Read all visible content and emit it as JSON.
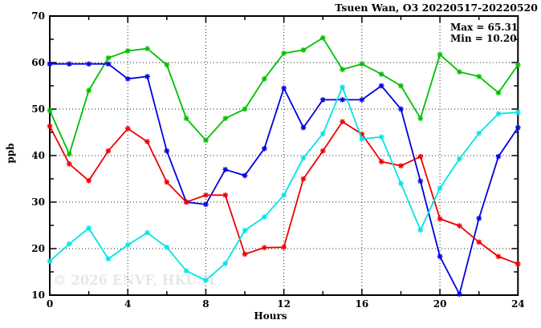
{
  "header": {
    "title": "Tsuen Wan, O3 20220517-20220520"
  },
  "stats": {
    "max_label": "Max = 65.31",
    "min_label": "Min = 10.20"
  },
  "watermark": "© 2026 ENVF, HKUST",
  "axes": {
    "y_label": "ppb",
    "x_label": "Hours",
    "x_tick_labels": [
      "0",
      "4",
      "8",
      "12",
      "16",
      "20",
      "24"
    ],
    "y_tick_labels": [
      "10",
      "20",
      "30",
      "40",
      "50",
      "60",
      "70"
    ]
  },
  "chart_data": {
    "type": "line",
    "title": "Tsuen Wan, O3 20220517-20220520",
    "xlabel": "Hours",
    "ylabel": "ppb",
    "xlim": [
      0,
      24
    ],
    "ylim": [
      10,
      70
    ],
    "x": [
      0,
      1,
      2,
      3,
      4,
      5,
      6,
      7,
      8,
      9,
      10,
      11,
      12,
      13,
      14,
      15,
      16,
      17,
      18,
      19,
      20,
      21,
      22,
      23,
      24
    ],
    "x_major_ticks": [
      0,
      4,
      8,
      12,
      16,
      20,
      24
    ],
    "x_minor_ticks": [
      2,
      6,
      10,
      14,
      18,
      22
    ],
    "y_major_ticks": [
      10,
      20,
      30,
      40,
      50,
      60,
      70
    ],
    "y_minor_ticks": [
      15,
      25,
      35,
      45,
      55,
      65
    ],
    "grid_x": [
      4,
      8,
      12,
      16,
      20
    ],
    "grid_y": [
      20,
      30,
      40,
      50,
      60
    ],
    "grid_style": "dotted",
    "legend": "none",
    "marker": "asterisk",
    "annotations": {
      "max": 65.31,
      "min": 10.2
    },
    "series": [
      {
        "name": "green",
        "color": "#00c000",
        "values": [
          49.7,
          40.3,
          54,
          61,
          62.5,
          63,
          59.5,
          48,
          43.3,
          48,
          50,
          56.5,
          62,
          62.7,
          65.31,
          58.5,
          59.7,
          57.5,
          55,
          48,
          61.7,
          58,
          57,
          53.5,
          59.5
        ]
      },
      {
        "name": "blue",
        "color": "#0000dd",
        "values": [
          59.7,
          59.7,
          59.7,
          59.7,
          56.5,
          57,
          41,
          30,
          29.5,
          37,
          35.7,
          41.5,
          54.5,
          46,
          52,
          52,
          52,
          55,
          50,
          34.5,
          18.3,
          10.2,
          26.5,
          39.8,
          46
        ]
      },
      {
        "name": "red",
        "color": "#ee0000",
        "values": [
          46.3,
          38.2,
          34.6,
          41,
          45.8,
          43,
          34.3,
          30,
          31.5,
          31.5,
          18.8,
          20.2,
          20.3,
          35,
          41,
          47.3,
          44.6,
          38.7,
          37.8,
          39.8,
          26.4,
          24.9,
          21.4,
          18.3,
          16.7
        ]
      },
      {
        "name": "cyan",
        "color": "#00e5e5",
        "values": [
          17.3,
          21,
          24.4,
          17.8,
          20.8,
          23.4,
          20.3,
          15.2,
          13.2,
          16.8,
          23.9,
          26.8,
          31.5,
          39.5,
          44.7,
          54.7,
          43.6,
          44,
          34,
          24,
          33,
          39.3,
          44.8,
          49,
          49.3
        ]
      }
    ]
  }
}
